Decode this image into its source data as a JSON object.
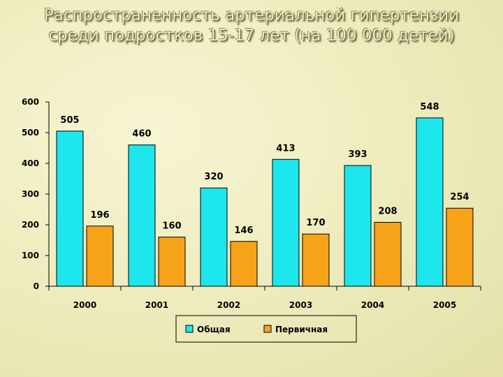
{
  "title": "Распространенность артериальной гипертензии среди подростков 15-17 лет (на 100 000 детей)",
  "chart_data": {
    "type": "bar",
    "title": "Распространенность артериальной гипертензии среди подростков 15-17 лет (на 100 000 детей)",
    "categories": [
      "2000",
      "2001",
      "2002",
      "2003",
      "2004",
      "2005"
    ],
    "series": [
      {
        "name": "Общая",
        "values": [
          505,
          460,
          320,
          413,
          393,
          548
        ],
        "color": "#1de6ec"
      },
      {
        "name": "Первичная",
        "values": [
          196,
          160,
          146,
          170,
          208,
          254
        ],
        "color": "#f7a31a"
      }
    ],
    "ylim": [
      0,
      600
    ],
    "yticks": [
      0,
      100,
      200,
      300,
      400,
      500,
      600
    ],
    "legend_position": "bottom",
    "grid": false,
    "data_labels": true
  }
}
